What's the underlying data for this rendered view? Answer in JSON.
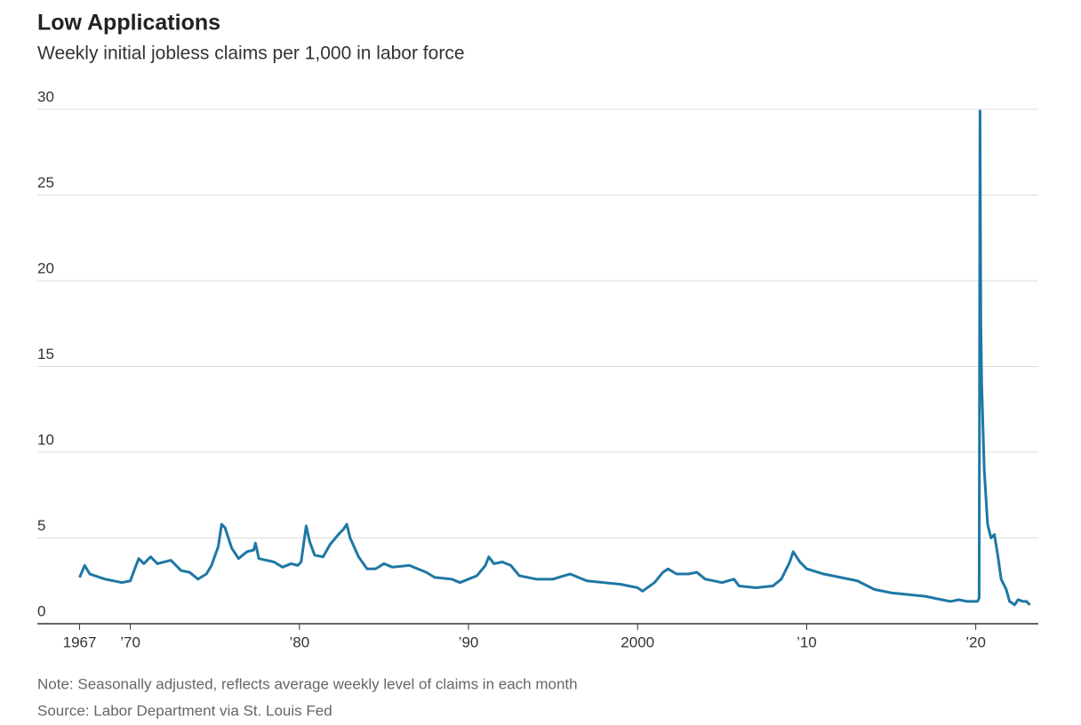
{
  "chart_data": {
    "type": "line",
    "title": "Low Applications",
    "subtitle": "Weekly initial jobless claims per 1,000 in labor force",
    "note": "Note: Seasonally adjusted, reflects average weekly level of claims in each month",
    "source": "Source: Labor Department via St. Louis Fed",
    "xlim": [
      1964.5,
      2023.7
    ],
    "ylim": [
      0,
      30
    ],
    "yticks": [
      0,
      5,
      10,
      15,
      20,
      25,
      30
    ],
    "xticks": [
      1967,
      {
        "value": 1970,
        "label": "’70"
      },
      {
        "value": 1980,
        "label": "’80"
      },
      {
        "value": 1990,
        "label": "’90"
      },
      2000,
      {
        "value": 2010,
        "label": "’10"
      },
      {
        "value": 2020,
        "label": "’20"
      }
    ],
    "grid": true,
    "series": [
      {
        "color": "#1f77a4",
        "x": [
          1967.0,
          1967.3,
          1967.6,
          1968.5,
          1969.5,
          1970.0,
          1970.3,
          1970.5,
          1970.8,
          1971.2,
          1971.6,
          1972.4,
          1973.0,
          1973.5,
          1974.0,
          1974.5,
          1974.8,
          1975.2,
          1975.4,
          1975.6,
          1976.0,
          1976.4,
          1976.9,
          1977.3,
          1977.4,
          1977.6,
          1978.5,
          1979.0,
          1979.5,
          1979.9,
          1980.1,
          1980.2,
          1980.4,
          1980.6,
          1980.9,
          1981.4,
          1981.8,
          1982.3,
          1982.6,
          1982.8,
          1983.0,
          1983.5,
          1984.0,
          1984.5,
          1985.0,
          1985.5,
          1986.5,
          1987.5,
          1988.0,
          1989.0,
          1989.5,
          1990.0,
          1990.5,
          1991.0,
          1991.2,
          1991.5,
          1992.0,
          1992.5,
          1993.0,
          1994.0,
          1995.0,
          1996.0,
          1997.0,
          1998.0,
          1999.0,
          2000.0,
          2000.3,
          2001.0,
          2001.5,
          2001.8,
          2002.3,
          2003.0,
          2003.5,
          2004.0,
          2005.0,
          2005.7,
          2006.0,
          2007.0,
          2008.0,
          2008.5,
          2009.0,
          2009.2,
          2009.6,
          2010.0,
          2011.0,
          2012.0,
          2013.0,
          2014.0,
          2015.0,
          2016.0,
          2017.0,
          2018.0,
          2018.5,
          2019.0,
          2019.5,
          2020.1,
          2020.2,
          2020.25,
          2020.3,
          2020.35,
          2020.5,
          2020.7,
          2020.9,
          2021.1,
          2021.3,
          2021.5,
          2021.8,
          2022.0,
          2022.3,
          2022.5,
          2022.8,
          2023.0,
          2023.2
        ],
        "values": [
          2.7,
          3.4,
          2.9,
          2.6,
          2.4,
          2.5,
          3.3,
          3.8,
          3.5,
          3.9,
          3.5,
          3.7,
          3.1,
          3.0,
          2.6,
          2.9,
          3.4,
          4.5,
          5.8,
          5.6,
          4.4,
          3.8,
          4.2,
          4.3,
          4.7,
          3.8,
          3.6,
          3.3,
          3.5,
          3.4,
          3.6,
          4.3,
          5.7,
          4.8,
          4.0,
          3.9,
          4.6,
          5.2,
          5.5,
          5.8,
          5.0,
          3.9,
          3.2,
          3.2,
          3.5,
          3.3,
          3.4,
          3.0,
          2.7,
          2.6,
          2.4,
          2.6,
          2.8,
          3.4,
          3.9,
          3.5,
          3.6,
          3.4,
          2.8,
          2.6,
          2.6,
          2.9,
          2.5,
          2.4,
          2.3,
          2.1,
          1.9,
          2.4,
          3.0,
          3.2,
          2.9,
          2.9,
          3.0,
          2.6,
          2.4,
          2.6,
          2.2,
          2.1,
          2.2,
          2.6,
          3.6,
          4.2,
          3.6,
          3.2,
          2.9,
          2.7,
          2.5,
          2.0,
          1.8,
          1.7,
          1.6,
          1.4,
          1.3,
          1.4,
          1.3,
          1.3,
          1.5,
          29.9,
          17.5,
          14.0,
          9.0,
          5.8,
          5.0,
          5.2,
          4.0,
          2.6,
          2.0,
          1.3,
          1.1,
          1.4,
          1.3,
          1.3,
          1.1
        ]
      }
    ]
  }
}
